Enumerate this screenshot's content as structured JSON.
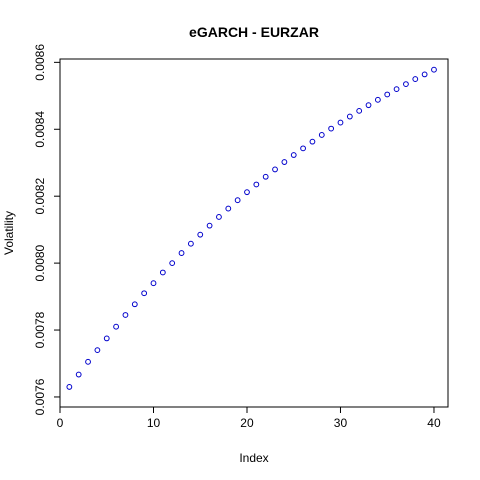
{
  "chart_data": {
    "type": "scatter",
    "title": "eGARCH - EURZAR",
    "xlabel": "Index",
    "ylabel": "Volatility",
    "xlim": [
      0,
      41.5
    ],
    "ylim": [
      0.00757,
      0.00861
    ],
    "x_ticks": [
      0,
      10,
      20,
      30,
      40
    ],
    "x_tick_labels": [
      "0",
      "10",
      "20",
      "30",
      "40"
    ],
    "y_ticks": [
      0.0076,
      0.0078,
      0.008,
      0.0082,
      0.0084,
      0.0086
    ],
    "y_tick_labels": [
      "0.0076",
      "0.0078",
      "0.0080",
      "0.0082",
      "0.0084",
      "0.0086"
    ],
    "point_color": "#0000cc",
    "series": [
      {
        "name": "Volatility",
        "x": [
          1,
          2,
          3,
          4,
          5,
          6,
          7,
          8,
          9,
          10,
          11,
          12,
          13,
          14,
          15,
          16,
          17,
          18,
          19,
          20,
          21,
          22,
          23,
          24,
          25,
          26,
          27,
          28,
          29,
          30,
          31,
          32,
          33,
          34,
          35,
          36,
          37,
          38,
          39,
          40
        ],
        "values": [
          0.00763,
          0.007667,
          0.007705,
          0.00774,
          0.007775,
          0.00781,
          0.007845,
          0.007877,
          0.00791,
          0.00794,
          0.007972,
          0.008,
          0.00803,
          0.008058,
          0.008085,
          0.008112,
          0.008138,
          0.008163,
          0.008188,
          0.008212,
          0.008235,
          0.008258,
          0.00828,
          0.008302,
          0.008323,
          0.008343,
          0.008363,
          0.008383,
          0.008402,
          0.00842,
          0.008438,
          0.008455,
          0.008472,
          0.008488,
          0.008504,
          0.00852,
          0.008535,
          0.00855,
          0.008564,
          0.008578
        ]
      }
    ]
  }
}
